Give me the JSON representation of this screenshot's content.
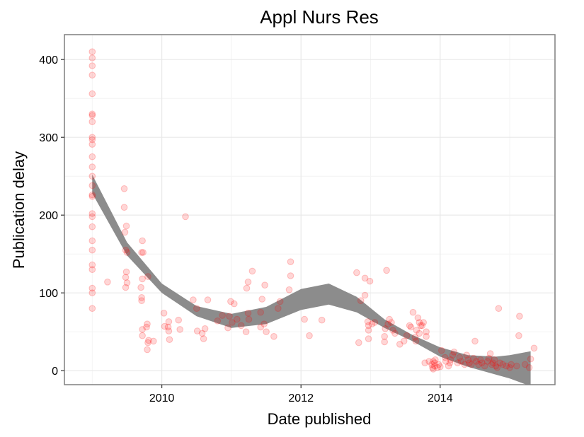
{
  "chart_data": {
    "type": "scatter",
    "title": "Appl Nurs Res",
    "xlabel": "Date published",
    "ylabel": "Publication delay",
    "xlim": [
      2008.6,
      2015.65
    ],
    "ylim": [
      -18,
      432
    ],
    "x_ticks": [
      2010,
      2012,
      2014
    ],
    "x_tick_labels": [
      "2010",
      "2012",
      "2014"
    ],
    "y_ticks": [
      0,
      100,
      200,
      300,
      400
    ],
    "y_tick_labels": [
      "0",
      "100",
      "200",
      "300",
      "400"
    ],
    "grid": true,
    "legend": "none",
    "point_color": "#ff0000",
    "band_color": "#8c8c8c",
    "smooth_band": {
      "x": [
        2009.0,
        2009.5,
        2010.0,
        2010.5,
        2011.0,
        2011.5,
        2012.0,
        2012.4,
        2012.8,
        2013.2,
        2013.6,
        2014.0,
        2014.4,
        2014.8,
        2015.0,
        2015.3
      ],
      "lower": [
        228,
        148,
        100,
        70,
        55,
        60,
        78,
        85,
        75,
        55,
        38,
        18,
        5,
        -5,
        -10,
        -20
      ],
      "upper": [
        252,
        165,
        112,
        83,
        73,
        82,
        105,
        112,
        95,
        66,
        46,
        30,
        20,
        18,
        20,
        25
      ]
    },
    "points": [
      {
        "x": 2009.0,
        "y": 410
      },
      {
        "x": 2009.0,
        "y": 402
      },
      {
        "x": 2009.0,
        "y": 392
      },
      {
        "x": 2009.0,
        "y": 380
      },
      {
        "x": 2009.0,
        "y": 356
      },
      {
        "x": 2009.0,
        "y": 330
      },
      {
        "x": 2009.0,
        "y": 328
      },
      {
        "x": 2009.0,
        "y": 320
      },
      {
        "x": 2009.0,
        "y": 300
      },
      {
        "x": 2009.0,
        "y": 297
      },
      {
        "x": 2009.0,
        "y": 291
      },
      {
        "x": 2009.0,
        "y": 275
      },
      {
        "x": 2009.0,
        "y": 262
      },
      {
        "x": 2009.0,
        "y": 250
      },
      {
        "x": 2009.0,
        "y": 238
      },
      {
        "x": 2009.0,
        "y": 226
      },
      {
        "x": 2009.0,
        "y": 224
      },
      {
        "x": 2009.0,
        "y": 202
      },
      {
        "x": 2009.0,
        "y": 198
      },
      {
        "x": 2009.0,
        "y": 185
      },
      {
        "x": 2009.0,
        "y": 167
      },
      {
        "x": 2009.0,
        "y": 155
      },
      {
        "x": 2009.0,
        "y": 136
      },
      {
        "x": 2009.0,
        "y": 130
      },
      {
        "x": 2009.0,
        "y": 106
      },
      {
        "x": 2009.0,
        "y": 100
      },
      {
        "x": 2009.0,
        "y": 80
      },
      {
        "x": 2009.22,
        "y": 114
      },
      {
        "x": 2009.46,
        "y": 234
      },
      {
        "x": 2009.46,
        "y": 210
      },
      {
        "x": 2009.49,
        "y": 186
      },
      {
        "x": 2009.47,
        "y": 178
      },
      {
        "x": 2009.48,
        "y": 155
      },
      {
        "x": 2009.5,
        "y": 152
      },
      {
        "x": 2009.49,
        "y": 127
      },
      {
        "x": 2009.48,
        "y": 120
      },
      {
        "x": 2009.5,
        "y": 113
      },
      {
        "x": 2009.48,
        "y": 107
      },
      {
        "x": 2009.72,
        "y": 167
      },
      {
        "x": 2009.71,
        "y": 152
      },
      {
        "x": 2009.73,
        "y": 152
      },
      {
        "x": 2009.72,
        "y": 118
      },
      {
        "x": 2009.7,
        "y": 107
      },
      {
        "x": 2009.71,
        "y": 94
      },
      {
        "x": 2009.71,
        "y": 90
      },
      {
        "x": 2009.8,
        "y": 121
      },
      {
        "x": 2009.72,
        "y": 53
      },
      {
        "x": 2009.72,
        "y": 45
      },
      {
        "x": 2009.79,
        "y": 60
      },
      {
        "x": 2009.78,
        "y": 56
      },
      {
        "x": 2009.81,
        "y": 39
      },
      {
        "x": 2009.8,
        "y": 36
      },
      {
        "x": 2009.79,
        "y": 27
      },
      {
        "x": 2009.88,
        "y": 38
      },
      {
        "x": 2010.03,
        "y": 74
      },
      {
        "x": 2010.04,
        "y": 57
      },
      {
        "x": 2010.09,
        "y": 56
      },
      {
        "x": 2010.1,
        "y": 63
      },
      {
        "x": 2010.1,
        "y": 51
      },
      {
        "x": 2010.11,
        "y": 40
      },
      {
        "x": 2010.24,
        "y": 65
      },
      {
        "x": 2010.26,
        "y": 53
      },
      {
        "x": 2010.34,
        "y": 198
      },
      {
        "x": 2010.45,
        "y": 91
      },
      {
        "x": 2010.5,
        "y": 80
      },
      {
        "x": 2010.51,
        "y": 51
      },
      {
        "x": 2010.58,
        "y": 48
      },
      {
        "x": 2010.6,
        "y": 41
      },
      {
        "x": 2010.62,
        "y": 54
      },
      {
        "x": 2010.66,
        "y": 91
      },
      {
        "x": 2010.8,
        "y": 64
      },
      {
        "x": 2010.87,
        "y": 71
      },
      {
        "x": 2010.95,
        "y": 55
      },
      {
        "x": 2010.97,
        "y": 70
      },
      {
        "x": 2010.99,
        "y": 89
      },
      {
        "x": 2011.04,
        "y": 86
      },
      {
        "x": 2011.01,
        "y": 62
      },
      {
        "x": 2011.08,
        "y": 66
      },
      {
        "x": 2011.14,
        "y": 58
      },
      {
        "x": 2011.22,
        "y": 106
      },
      {
        "x": 2011.24,
        "y": 114
      },
      {
        "x": 2011.24,
        "y": 74
      },
      {
        "x": 2011.25,
        "y": 66
      },
      {
        "x": 2011.3,
        "y": 128
      },
      {
        "x": 2011.21,
        "y": 50
      },
      {
        "x": 2011.42,
        "y": 56
      },
      {
        "x": 2011.42,
        "y": 75
      },
      {
        "x": 2011.44,
        "y": 92
      },
      {
        "x": 2011.48,
        "y": 110
      },
      {
        "x": 2011.47,
        "y": 60
      },
      {
        "x": 2011.5,
        "y": 50
      },
      {
        "x": 2011.61,
        "y": 44
      },
      {
        "x": 2011.67,
        "y": 80
      },
      {
        "x": 2011.7,
        "y": 89
      },
      {
        "x": 2011.83,
        "y": 104
      },
      {
        "x": 2011.85,
        "y": 122
      },
      {
        "x": 2011.85,
        "y": 140
      },
      {
        "x": 2012.05,
        "y": 66
      },
      {
        "x": 2012.12,
        "y": 45
      },
      {
        "x": 2012.3,
        "y": 65
      },
      {
        "x": 2012.8,
        "y": 126
      },
      {
        "x": 2012.83,
        "y": 36
      },
      {
        "x": 2012.86,
        "y": 90
      },
      {
        "x": 2012.92,
        "y": 119
      },
      {
        "x": 2012.92,
        "y": 97
      },
      {
        "x": 2012.96,
        "y": 63
      },
      {
        "x": 2012.97,
        "y": 58
      },
      {
        "x": 2012.97,
        "y": 52
      },
      {
        "x": 2012.97,
        "y": 41
      },
      {
        "x": 2012.99,
        "y": 115
      },
      {
        "x": 2013.02,
        "y": 60
      },
      {
        "x": 2013.06,
        "y": 62
      },
      {
        "x": 2013.2,
        "y": 37
      },
      {
        "x": 2013.2,
        "y": 44
      },
      {
        "x": 2013.21,
        "y": 54
      },
      {
        "x": 2013.23,
        "y": 129
      },
      {
        "x": 2013.25,
        "y": 60
      },
      {
        "x": 2013.27,
        "y": 66
      },
      {
        "x": 2013.3,
        "y": 62
      },
      {
        "x": 2013.32,
        "y": 52
      },
      {
        "x": 2013.35,
        "y": 48
      },
      {
        "x": 2013.42,
        "y": 34
      },
      {
        "x": 2013.48,
        "y": 38
      },
      {
        "x": 2013.52,
        "y": 45
      },
      {
        "x": 2013.56,
        "y": 58
      },
      {
        "x": 2013.58,
        "y": 56
      },
      {
        "x": 2013.61,
        "y": 75
      },
      {
        "x": 2013.64,
        "y": 43
      },
      {
        "x": 2013.65,
        "y": 38
      },
      {
        "x": 2013.66,
        "y": 52
      },
      {
        "x": 2013.68,
        "y": 68
      },
      {
        "x": 2013.7,
        "y": 62
      },
      {
        "x": 2013.7,
        "y": 48
      },
      {
        "x": 2013.72,
        "y": 58
      },
      {
        "x": 2013.74,
        "y": 58
      },
      {
        "x": 2013.76,
        "y": 62
      },
      {
        "x": 2013.8,
        "y": 50
      },
      {
        "x": 2013.8,
        "y": 44
      },
      {
        "x": 2013.78,
        "y": 10
      },
      {
        "x": 2013.84,
        "y": 12
      },
      {
        "x": 2013.88,
        "y": 8
      },
      {
        "x": 2013.89,
        "y": 4
      },
      {
        "x": 2013.9,
        "y": 12
      },
      {
        "x": 2013.9,
        "y": 2
      },
      {
        "x": 2013.92,
        "y": 10
      },
      {
        "x": 2013.92,
        "y": 6
      },
      {
        "x": 2013.93,
        "y": 14
      },
      {
        "x": 2013.96,
        "y": 4
      },
      {
        "x": 2013.98,
        "y": 8
      },
      {
        "x": 2014.0,
        "y": 5
      },
      {
        "x": 2014.02,
        "y": 26
      },
      {
        "x": 2014.07,
        "y": 17
      },
      {
        "x": 2014.08,
        "y": 12
      },
      {
        "x": 2014.12,
        "y": 6
      },
      {
        "x": 2014.14,
        "y": 10
      },
      {
        "x": 2014.15,
        "y": 14
      },
      {
        "x": 2014.18,
        "y": 20
      },
      {
        "x": 2014.2,
        "y": 24
      },
      {
        "x": 2014.25,
        "y": 10
      },
      {
        "x": 2014.28,
        "y": 17
      },
      {
        "x": 2014.3,
        "y": 12
      },
      {
        "x": 2014.35,
        "y": 8
      },
      {
        "x": 2014.38,
        "y": 20
      },
      {
        "x": 2014.4,
        "y": 14
      },
      {
        "x": 2014.42,
        "y": 10
      },
      {
        "x": 2014.45,
        "y": 8
      },
      {
        "x": 2014.48,
        "y": 16
      },
      {
        "x": 2014.5,
        "y": 38
      },
      {
        "x": 2014.52,
        "y": 12
      },
      {
        "x": 2014.55,
        "y": 8
      },
      {
        "x": 2014.58,
        "y": 14
      },
      {
        "x": 2014.6,
        "y": 10
      },
      {
        "x": 2014.64,
        "y": 6
      },
      {
        "x": 2014.68,
        "y": 12
      },
      {
        "x": 2014.7,
        "y": 16
      },
      {
        "x": 2014.72,
        "y": 22
      },
      {
        "x": 2014.74,
        "y": 8
      },
      {
        "x": 2014.76,
        "y": 10
      },
      {
        "x": 2014.78,
        "y": 14
      },
      {
        "x": 2014.8,
        "y": 6
      },
      {
        "x": 2014.82,
        "y": 4
      },
      {
        "x": 2014.84,
        "y": 80
      },
      {
        "x": 2014.86,
        "y": 10
      },
      {
        "x": 2014.9,
        "y": 8
      },
      {
        "x": 2014.95,
        "y": 6
      },
      {
        "x": 2015.0,
        "y": 4
      },
      {
        "x": 2015.02,
        "y": 8
      },
      {
        "x": 2015.1,
        "y": 6
      },
      {
        "x": 2015.13,
        "y": 45
      },
      {
        "x": 2015.14,
        "y": 70
      },
      {
        "x": 2015.22,
        "y": 8
      },
      {
        "x": 2015.28,
        "y": 4
      },
      {
        "x": 2015.3,
        "y": 15
      },
      {
        "x": 2015.35,
        "y": 29
      }
    ]
  }
}
